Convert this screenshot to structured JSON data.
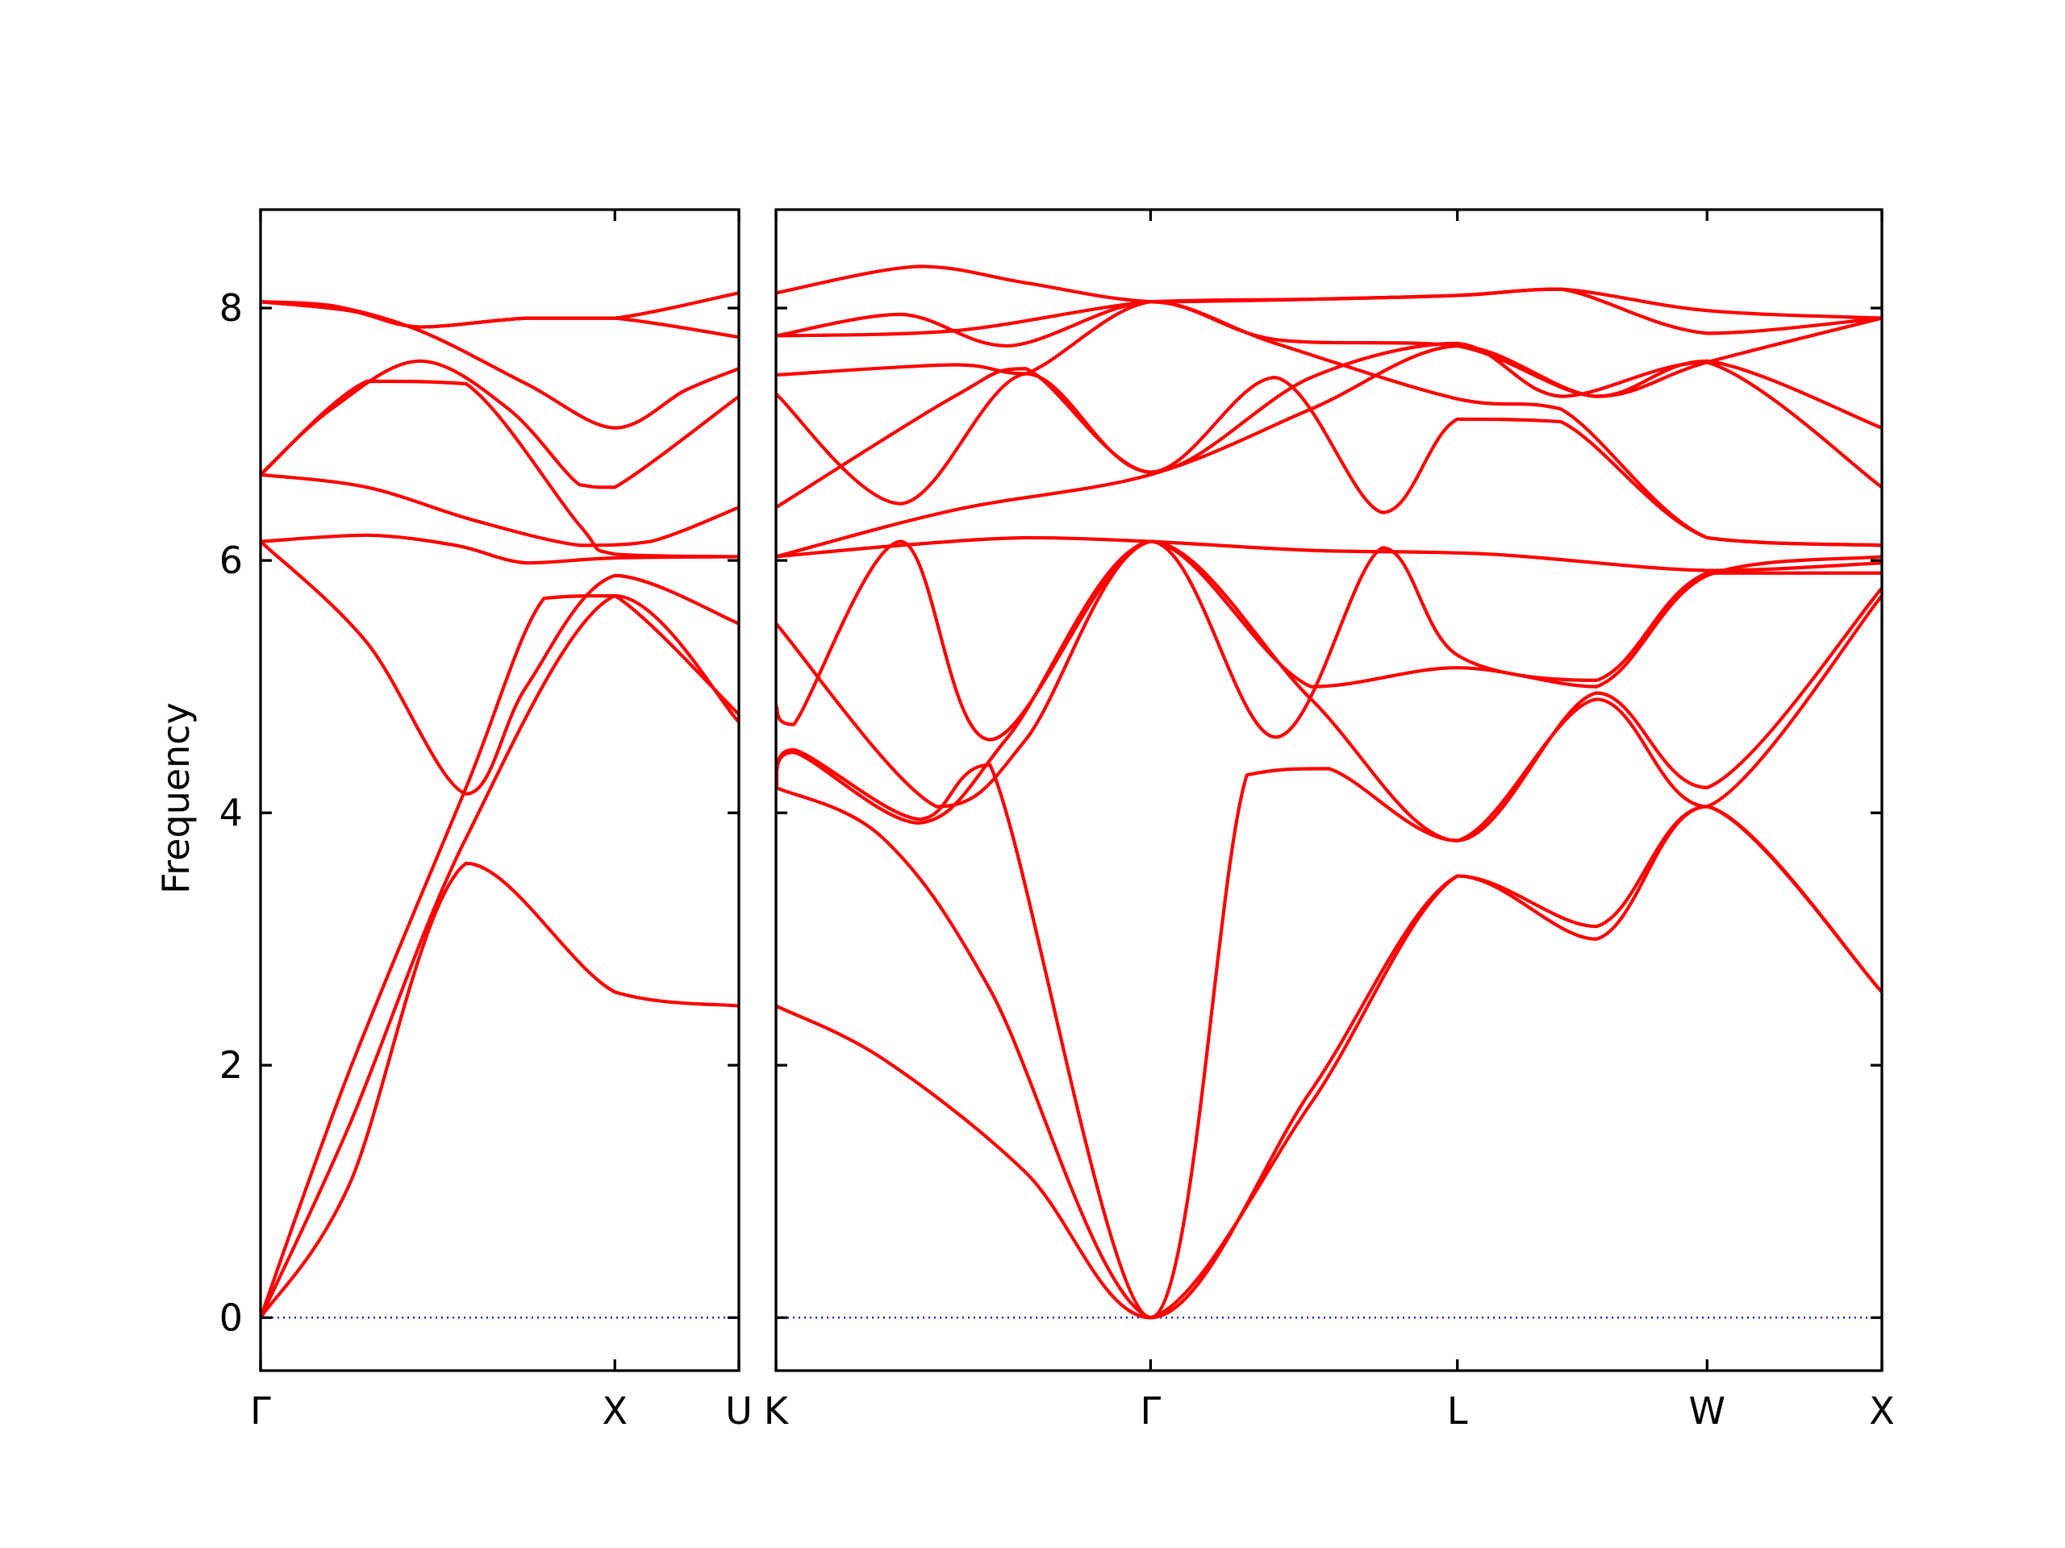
{
  "chart_data": {
    "type": "line",
    "ylabel": "Frequency",
    "ylim": [
      -0.42,
      8.78
    ],
    "yticks": [
      0,
      2,
      4,
      6,
      8
    ],
    "band_color": "#ff0000",
    "zero_line_color": "#0000cc",
    "panels": [
      {
        "name": "left",
        "xlim": [
          0,
          1.35
        ],
        "xticks": [
          {
            "x": 0,
            "label": "Γ"
          },
          {
            "x": 1.0,
            "label": "X"
          },
          {
            "x": 1.35,
            "label": "U"
          }
        ],
        "bands": [
          [
            [
              0,
              0
            ],
            [
              0.25,
              1.05
            ],
            [
              0.58,
              3.6
            ],
            [
              1.0,
              2.58
            ],
            [
              1.35,
              2.47
            ]
          ],
          [
            [
              0,
              0
            ],
            [
              0.25,
              1.52
            ],
            [
              0.58,
              3.8
            ],
            [
              1.0,
              5.72
            ],
            [
              1.35,
              4.72
            ]
          ],
          [
            [
              0,
              0
            ],
            [
              0.25,
              1.95
            ],
            [
              0.58,
              4.2
            ],
            [
              0.8,
              5.7
            ],
            [
              1.0,
              5.72
            ],
            [
              1.35,
              4.78
            ]
          ],
          [
            [
              0,
              6.15
            ],
            [
              0.3,
              5.35
            ],
            [
              0.58,
              4.15
            ],
            [
              0.75,
              5.0
            ],
            [
              1.0,
              5.88
            ],
            [
              1.35,
              5.5
            ]
          ],
          [
            [
              0,
              6.15
            ],
            [
              0.3,
              6.2
            ],
            [
              0.55,
              6.12
            ],
            [
              0.75,
              5.98
            ],
            [
              1.0,
              6.02
            ],
            [
              1.35,
              6.03
            ]
          ],
          [
            [
              0,
              6.68
            ],
            [
              0.3,
              6.58
            ],
            [
              0.6,
              6.32
            ],
            [
              0.9,
              6.12
            ],
            [
              1.1,
              6.15
            ],
            [
              1.35,
              6.42
            ]
          ],
          [
            [
              0,
              6.68
            ],
            [
              0.3,
              7.42
            ],
            [
              0.58,
              7.4
            ],
            [
              0.9,
              6.28
            ],
            [
              1.0,
              6.05
            ],
            [
              1.35,
              6.03
            ]
          ],
          [
            [
              0,
              6.68
            ],
            [
              0.2,
              7.2
            ],
            [
              0.45,
              7.58
            ],
            [
              0.7,
              7.2
            ],
            [
              0.9,
              6.6
            ],
            [
              1.0,
              6.58
            ],
            [
              1.35,
              7.3
            ]
          ],
          [
            [
              0,
              8.05
            ],
            [
              0.2,
              8.02
            ],
            [
              0.45,
              7.82
            ],
            [
              0.75,
              7.4
            ],
            [
              1.0,
              7.05
            ],
            [
              1.2,
              7.35
            ],
            [
              1.35,
              7.52
            ]
          ],
          [
            [
              0,
              8.05
            ],
            [
              0.25,
              7.98
            ],
            [
              0.45,
              7.85
            ],
            [
              0.75,
              7.92
            ],
            [
              1.0,
              7.92
            ],
            [
              1.35,
              8.12
            ]
          ],
          [
            [
              0,
              8.05
            ],
            [
              0.25,
              7.98
            ],
            [
              0.45,
              7.85
            ],
            [
              0.75,
              7.92
            ],
            [
              1.0,
              7.92
            ],
            [
              1.35,
              7.77
            ]
          ]
        ]
      },
      {
        "name": "right",
        "xlim": [
          0,
          3.1
        ],
        "xticks": [
          {
            "x": 0,
            "label": "K"
          },
          {
            "x": 1.05,
            "label": "Γ"
          },
          {
            "x": 1.91,
            "label": "L"
          },
          {
            "x": 2.61,
            "label": "W"
          },
          {
            "x": 3.1,
            "label": "X"
          }
        ],
        "bands": [
          [
            [
              0,
              2.47
            ],
            [
              0.3,
              2.05
            ],
            [
              0.7,
              1.15
            ],
            [
              1.05,
              0
            ],
            [
              1.5,
              1.7
            ],
            [
              1.91,
              3.5
            ],
            [
              2.3,
              3.1
            ],
            [
              2.61,
              4.05
            ],
            [
              3.1,
              2.58
            ]
          ],
          [
            [
              0,
              4.2
            ],
            [
              0.3,
              3.8
            ],
            [
              0.6,
              2.6
            ],
            [
              1.05,
              0
            ],
            [
              1.5,
              1.8
            ],
            [
              1.91,
              3.5
            ],
            [
              2.3,
              3.0
            ],
            [
              2.61,
              4.05
            ],
            [
              3.1,
              2.58
            ]
          ],
          [
            [
              0,
              4.2
            ],
            [
              0.05,
              4.5
            ],
            [
              0.4,
              3.95
            ],
            [
              0.6,
              4.38
            ],
            [
              1.05,
              0
            ],
            [
              1.32,
              4.3
            ],
            [
              1.55,
              4.35
            ],
            [
              1.91,
              3.78
            ],
            [
              2.3,
              4.9
            ],
            [
              2.61,
              4.05
            ],
            [
              3.1,
              5.72
            ]
          ],
          [
            [
              0,
              4.2
            ],
            [
              0.05,
              4.48
            ],
            [
              0.4,
              3.92
            ],
            [
              0.65,
              4.6
            ],
            [
              1.05,
              6.15
            ],
            [
              1.5,
              4.9
            ],
            [
              1.91,
              3.78
            ],
            [
              2.3,
              4.95
            ],
            [
              2.61,
              4.2
            ],
            [
              3.1,
              5.78
            ]
          ],
          [
            [
              0,
              4.85
            ],
            [
              0.05,
              4.7
            ],
            [
              0.35,
              6.15
            ],
            [
              0.6,
              4.58
            ],
            [
              1.05,
              6.15
            ],
            [
              1.4,
              4.6
            ],
            [
              1.7,
              6.1
            ],
            [
              1.91,
              5.25
            ],
            [
              2.3,
              5.05
            ],
            [
              2.61,
              5.9
            ],
            [
              3.1,
              5.9
            ]
          ],
          [
            [
              0,
              5.5
            ],
            [
              0.45,
              4.05
            ],
            [
              0.7,
              4.58
            ],
            [
              1.05,
              6.15
            ],
            [
              1.5,
              5.0
            ],
            [
              1.91,
              5.15
            ],
            [
              2.3,
              5.0
            ],
            [
              2.61,
              5.88
            ],
            [
              3.1,
              6.03
            ]
          ],
          [
            [
              0,
              6.03
            ],
            [
              0.35,
              6.12
            ],
            [
              0.7,
              6.18
            ],
            [
              1.05,
              6.15
            ],
            [
              1.5,
              6.08
            ],
            [
              2.0,
              6.05
            ],
            [
              2.61,
              5.92
            ],
            [
              3.1,
              5.98
            ]
          ],
          [
            [
              0,
              6.03
            ],
            [
              0.5,
              6.4
            ],
            [
              1.05,
              6.68
            ],
            [
              1.5,
              7.2
            ],
            [
              1.91,
              7.7
            ],
            [
              2.3,
              7.3
            ],
            [
              2.61,
              7.57
            ],
            [
              3.1,
              7.92
            ]
          ],
          [
            [
              0,
              6.42
            ],
            [
              0.5,
              7.3
            ],
            [
              0.7,
              7.52
            ],
            [
              1.05,
              6.7
            ],
            [
              1.4,
              7.45
            ],
            [
              1.7,
              6.38
            ],
            [
              1.91,
              7.12
            ],
            [
              2.2,
              7.1
            ],
            [
              2.61,
              6.18
            ],
            [
              3.1,
              6.12
            ]
          ],
          [
            [
              0,
              7.32
            ],
            [
              0.35,
              6.45
            ],
            [
              0.7,
              7.48
            ],
            [
              1.05,
              6.7
            ],
            [
              1.5,
              7.45
            ],
            [
              1.91,
              7.72
            ],
            [
              2.2,
              7.3
            ],
            [
              2.61,
              7.57
            ],
            [
              3.1,
              6.58
            ]
          ],
          [
            [
              0,
              7.47
            ],
            [
              0.5,
              7.55
            ],
            [
              0.7,
              7.48
            ],
            [
              1.05,
              8.05
            ],
            [
              1.4,
              7.72
            ],
            [
              1.91,
              7.28
            ],
            [
              2.2,
              7.2
            ],
            [
              2.61,
              6.18
            ],
            [
              3.1,
              6.12
            ]
          ],
          [
            [
              0,
              7.78
            ],
            [
              0.35,
              7.95
            ],
            [
              0.65,
              7.7
            ],
            [
              1.05,
              8.05
            ],
            [
              1.4,
              7.75
            ],
            [
              1.91,
              7.7
            ],
            [
              2.3,
              7.3
            ],
            [
              2.61,
              7.58
            ],
            [
              3.1,
              7.05
            ]
          ],
          [
            [
              0,
              7.78
            ],
            [
              0.5,
              7.82
            ],
            [
              1.05,
              8.05
            ],
            [
              1.5,
              8.07
            ],
            [
              1.91,
              8.1
            ],
            [
              2.2,
              8.15
            ],
            [
              2.61,
              7.8
            ],
            [
              3.1,
              7.92
            ]
          ],
          [
            [
              0,
              8.12
            ],
            [
              0.4,
              8.33
            ],
            [
              0.7,
              8.2
            ],
            [
              1.05,
              8.05
            ],
            [
              1.5,
              8.07
            ],
            [
              1.91,
              8.1
            ],
            [
              2.2,
              8.15
            ],
            [
              2.61,
              7.98
            ],
            [
              3.1,
              7.92
            ]
          ]
        ]
      }
    ]
  }
}
